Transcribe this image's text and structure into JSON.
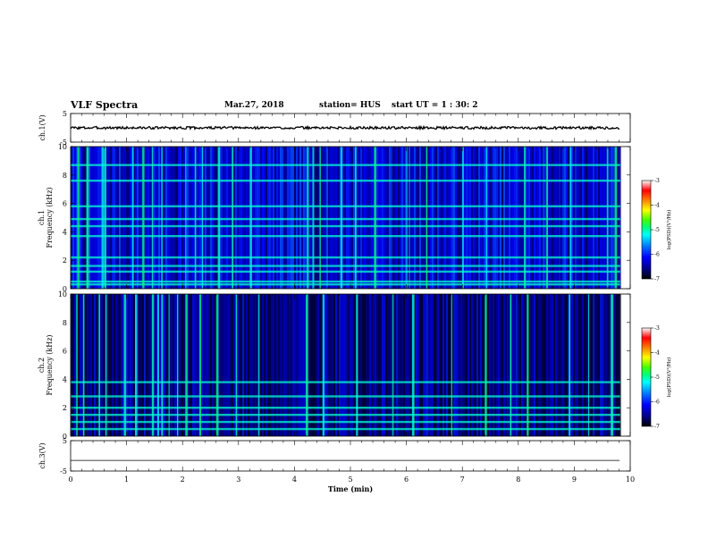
{
  "header": {
    "title": "VLF Spectra",
    "date": "Mar.27, 2018",
    "station": "station= HUS",
    "start": "start  UT =   1 : 30: 2"
  },
  "colors": {
    "background": "#ffffff",
    "ink": "#000000",
    "colormap": [
      "#000000",
      "#000088",
      "#0000ff",
      "#0080ff",
      "#00ffff",
      "#00ff80",
      "#40ff00",
      "#ffff00",
      "#ff8000",
      "#ff0000",
      "#ffffff"
    ]
  },
  "chart_data": [
    {
      "type": "line",
      "name": "ch.1 waveform",
      "ylabel": "ch.1(V)",
      "ylim": [
        -5,
        5
      ],
      "yticks": [
        "5",
        "-5"
      ],
      "xlim": [
        0,
        10
      ],
      "x": [
        0,
        9.82
      ],
      "y": [
        0,
        0
      ]
    },
    {
      "type": "heatmap",
      "ylabel_line1": "ch.1",
      "ylabel_line2": "Frequency  (kHz)",
      "ylim": [
        0,
        10
      ],
      "yticks": [
        "0",
        "2",
        "4",
        "6",
        "8",
        "10"
      ],
      "xlim": [
        0,
        10
      ],
      "data_xmax": 9.82,
      "colorbar": {
        "label": "log(PSD)(V²/Hz)",
        "range": [
          -7,
          -3
        ],
        "ticks": [
          "-3",
          "-4",
          "-5",
          "-6",
          "-7"
        ]
      },
      "background_log_psd": -6.3,
      "bright_bands_khz": [
        0.3,
        0.5,
        1.2,
        1.6,
        2.2,
        3.7,
        4.4,
        4.9,
        5.8,
        7.6,
        8.7
      ],
      "vertical_spike_min": [
        0.12,
        0.28,
        0.55,
        0.6,
        1.1,
        1.28,
        1.45,
        1.62,
        2.05,
        2.22,
        2.35,
        2.63,
        2.88,
        3.2,
        4.22,
        4.32,
        4.45,
        4.82,
        5.08,
        5.42,
        6.0,
        6.35,
        7.0,
        7.42,
        8.1,
        8.5,
        8.92,
        9.58,
        9.72
      ]
    },
    {
      "type": "heatmap",
      "ylabel_line1": "ch.2",
      "ylabel_line2": "Frequency  (kHz)",
      "ylim": [
        0,
        10
      ],
      "yticks": [
        "0",
        "2",
        "4",
        "6",
        "8",
        "10"
      ],
      "xlim": [
        0,
        10
      ],
      "data_xmax": 9.82,
      "colorbar": {
        "label": "log(PSD)(V²/Hz)",
        "range": [
          -7,
          -3
        ],
        "ticks": [
          "-3",
          "-4",
          "-5",
          "-6",
          "-7"
        ]
      },
      "background_log_psd": -6.6,
      "bright_bands_khz": [
        0.5,
        1.0,
        1.5,
        2.0,
        2.8,
        3.8
      ],
      "vertical_spike_min": [
        0.1,
        0.22,
        0.5,
        0.62,
        0.95,
        1.15,
        1.45,
        1.55,
        1.62,
        1.75,
        1.9,
        2.05,
        2.3,
        2.6,
        2.95,
        3.35,
        4.2,
        4.5,
        5.1,
        5.75,
        6.1,
        6.8,
        7.4,
        7.85,
        8.15,
        8.9,
        9.25,
        9.65
      ]
    },
    {
      "type": "line",
      "name": "ch.3 waveform",
      "ylabel": "ch.3(V)",
      "ylim": [
        -5,
        5
      ],
      "yticks": [
        "5",
        "-5"
      ],
      "xlim": [
        0,
        10
      ],
      "x": [
        0,
        9.82
      ],
      "y": [
        -1.5,
        -1.5
      ]
    }
  ],
  "xaxis": {
    "label": "Time  (min)",
    "ticks": [
      "0",
      "1",
      "2",
      "3",
      "4",
      "5",
      "6",
      "7",
      "8",
      "9",
      "10"
    ]
  }
}
